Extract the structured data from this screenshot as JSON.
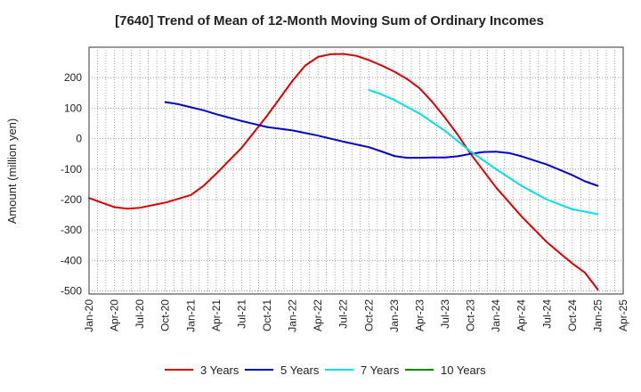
{
  "chart_data": {
    "type": "line",
    "title": "[7640]  Trend of Mean of 12-Month Moving Sum of Ordinary Incomes",
    "xlabel": "",
    "ylabel": "Amount (million yen)",
    "ylim": [
      -510,
      300
    ],
    "yticks": [
      200,
      100,
      0,
      -100,
      -200,
      -300,
      -400,
      -500
    ],
    "x_categories": [
      "Jan-20",
      "Apr-20",
      "Jul-20",
      "Oct-20",
      "Jan-21",
      "Apr-21",
      "Jul-21",
      "Oct-21",
      "Jan-22",
      "Apr-22",
      "Jul-22",
      "Oct-22",
      "Jan-23",
      "Apr-23",
      "Jul-23",
      "Oct-23",
      "Jan-24",
      "Apr-24",
      "Jul-24",
      "Oct-24",
      "Jan-25",
      "Apr-25"
    ],
    "series": [
      {
        "name": "3 Years",
        "color": "#dd0000",
        "values": [
          [
            0,
            -195
          ],
          [
            1,
            -225
          ],
          [
            1.5,
            -230
          ],
          [
            2,
            -227
          ],
          [
            3,
            -210
          ],
          [
            4,
            -185
          ],
          [
            4.5,
            -155
          ],
          [
            5,
            -115
          ],
          [
            6,
            -30
          ],
          [
            7,
            75
          ],
          [
            8,
            190
          ],
          [
            8.5,
            240
          ],
          [
            9,
            268
          ],
          [
            9.5,
            277
          ],
          [
            10,
            278
          ],
          [
            10.5,
            272
          ],
          [
            11,
            258
          ],
          [
            11.5,
            240
          ],
          [
            12,
            220
          ],
          [
            12.5,
            196
          ],
          [
            13,
            165
          ],
          [
            13.5,
            120
          ],
          [
            14,
            68
          ],
          [
            14.5,
            12
          ],
          [
            15,
            -50
          ],
          [
            16,
            -160
          ],
          [
            17,
            -255
          ],
          [
            18,
            -340
          ],
          [
            19,
            -410
          ],
          [
            19.5,
            -440
          ],
          [
            20,
            -495
          ]
        ]
      },
      {
        "name": "5 Years",
        "color": "#0000cc",
        "values": [
          [
            3,
            120
          ],
          [
            3.5,
            113
          ],
          [
            4,
            103
          ],
          [
            4.5,
            93
          ],
          [
            5,
            80
          ],
          [
            6,
            58
          ],
          [
            6.5,
            48
          ],
          [
            7,
            38
          ],
          [
            8,
            27
          ],
          [
            9,
            10
          ],
          [
            10,
            -10
          ],
          [
            11,
            -28
          ],
          [
            11.5,
            -42
          ],
          [
            12,
            -57
          ],
          [
            12.5,
            -63
          ],
          [
            13,
            -63
          ],
          [
            13.5,
            -62
          ],
          [
            14,
            -62
          ],
          [
            14.5,
            -58
          ],
          [
            15,
            -50
          ],
          [
            15.5,
            -44
          ],
          [
            16,
            -43
          ],
          [
            16.5,
            -47
          ],
          [
            17,
            -58
          ],
          [
            18,
            -85
          ],
          [
            19,
            -120
          ],
          [
            19.5,
            -140
          ],
          [
            20,
            -155
          ]
        ]
      },
      {
        "name": "7 Years",
        "color": "#00e0e8",
        "values": [
          [
            11,
            160
          ],
          [
            11.5,
            145
          ],
          [
            12,
            127
          ],
          [
            13,
            82
          ],
          [
            14,
            25
          ],
          [
            15,
            -42
          ],
          [
            16,
            -100
          ],
          [
            17,
            -155
          ],
          [
            18,
            -200
          ],
          [
            19,
            -232
          ],
          [
            20,
            -248
          ]
        ]
      },
      {
        "name": "10 Years",
        "color": "#008800",
        "values": []
      }
    ],
    "legend_position": "bottom-center",
    "grid": true
  }
}
